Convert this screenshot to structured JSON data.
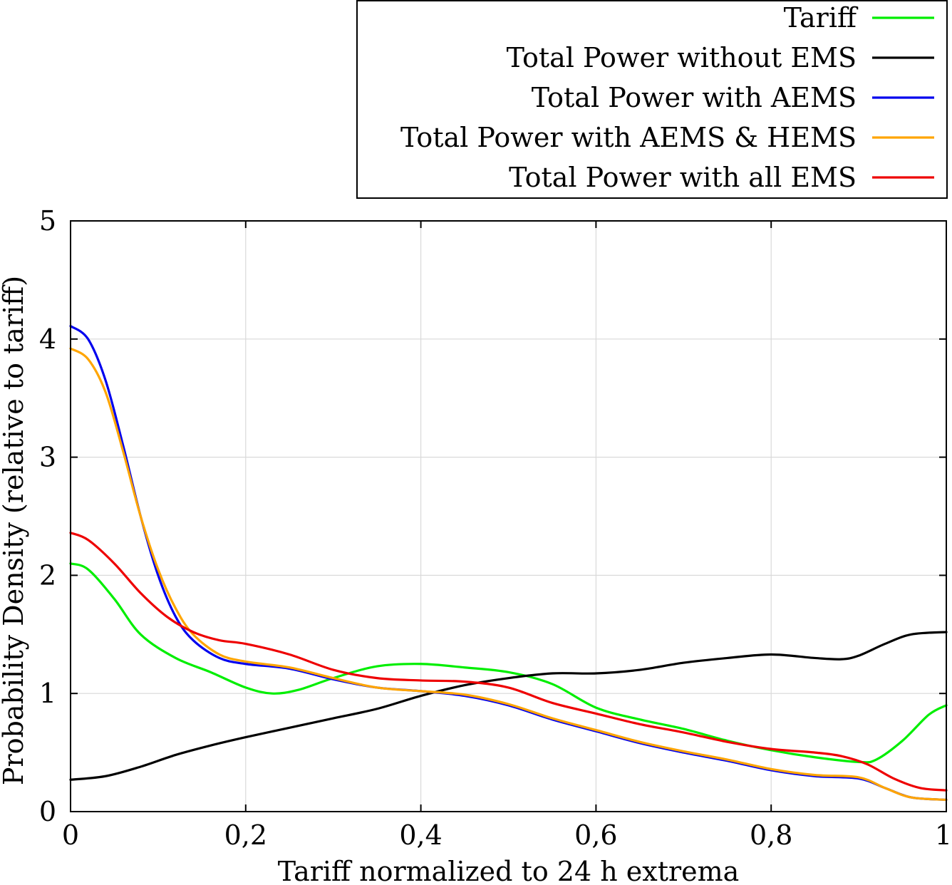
{
  "chart_data": {
    "type": "line",
    "xlabel": "Tariff normalized to 24 h extrema",
    "ylabel": "Probability Density (relative to tariff)",
    "xlim": [
      0,
      1
    ],
    "ylim": [
      0,
      5
    ],
    "grid": true,
    "legend_position": "top-right, above plot",
    "x_ticks": [
      {
        "value": 0,
        "label": "0"
      },
      {
        "value": 0.2,
        "label": "0,2"
      },
      {
        "value": 0.4,
        "label": "0,4"
      },
      {
        "value": 0.6,
        "label": "0,6"
      },
      {
        "value": 0.8,
        "label": "0,8"
      },
      {
        "value": 1,
        "label": "1"
      }
    ],
    "y_ticks": [
      {
        "value": 0,
        "label": "0"
      },
      {
        "value": 1,
        "label": "1"
      },
      {
        "value": 2,
        "label": "2"
      },
      {
        "value": 3,
        "label": "3"
      },
      {
        "value": 4,
        "label": "4"
      },
      {
        "value": 5,
        "label": "5"
      }
    ],
    "series": [
      {
        "name": "Tariff",
        "color": "#00ee00",
        "points": [
          [
            0,
            2.1
          ],
          [
            0.02,
            2.05
          ],
          [
            0.05,
            1.8
          ],
          [
            0.08,
            1.5
          ],
          [
            0.12,
            1.3
          ],
          [
            0.16,
            1.18
          ],
          [
            0.2,
            1.05
          ],
          [
            0.23,
            1.0
          ],
          [
            0.26,
            1.03
          ],
          [
            0.3,
            1.13
          ],
          [
            0.35,
            1.23
          ],
          [
            0.4,
            1.25
          ],
          [
            0.45,
            1.22
          ],
          [
            0.5,
            1.18
          ],
          [
            0.55,
            1.08
          ],
          [
            0.6,
            0.88
          ],
          [
            0.65,
            0.78
          ],
          [
            0.7,
            0.7
          ],
          [
            0.75,
            0.6
          ],
          [
            0.8,
            0.52
          ],
          [
            0.85,
            0.46
          ],
          [
            0.9,
            0.42
          ],
          [
            0.92,
            0.44
          ],
          [
            0.95,
            0.6
          ],
          [
            0.98,
            0.82
          ],
          [
            1,
            0.9
          ]
        ]
      },
      {
        "name": "Total Power without EMS",
        "color": "#000000",
        "points": [
          [
            0,
            0.27
          ],
          [
            0.04,
            0.3
          ],
          [
            0.08,
            0.38
          ],
          [
            0.12,
            0.48
          ],
          [
            0.16,
            0.56
          ],
          [
            0.2,
            0.63
          ],
          [
            0.25,
            0.71
          ],
          [
            0.3,
            0.79
          ],
          [
            0.35,
            0.87
          ],
          [
            0.4,
            0.98
          ],
          [
            0.45,
            1.07
          ],
          [
            0.5,
            1.13
          ],
          [
            0.55,
            1.17
          ],
          [
            0.6,
            1.17
          ],
          [
            0.65,
            1.2
          ],
          [
            0.7,
            1.26
          ],
          [
            0.75,
            1.3
          ],
          [
            0.8,
            1.33
          ],
          [
            0.85,
            1.3
          ],
          [
            0.88,
            1.29
          ],
          [
            0.9,
            1.32
          ],
          [
            0.93,
            1.42
          ],
          [
            0.96,
            1.5
          ],
          [
            1,
            1.52
          ]
        ]
      },
      {
        "name": "Total Power with AEMS",
        "color": "#0000ee",
        "points": [
          [
            0,
            4.11
          ],
          [
            0.02,
            4.0
          ],
          [
            0.04,
            3.65
          ],
          [
            0.06,
            3.1
          ],
          [
            0.08,
            2.5
          ],
          [
            0.1,
            2.0
          ],
          [
            0.12,
            1.65
          ],
          [
            0.14,
            1.45
          ],
          [
            0.17,
            1.3
          ],
          [
            0.2,
            1.25
          ],
          [
            0.25,
            1.21
          ],
          [
            0.3,
            1.12
          ],
          [
            0.35,
            1.05
          ],
          [
            0.4,
            1.02
          ],
          [
            0.45,
            0.98
          ],
          [
            0.5,
            0.9
          ],
          [
            0.55,
            0.78
          ],
          [
            0.6,
            0.68
          ],
          [
            0.65,
            0.58
          ],
          [
            0.7,
            0.5
          ],
          [
            0.75,
            0.43
          ],
          [
            0.8,
            0.35
          ],
          [
            0.85,
            0.3
          ],
          [
            0.9,
            0.28
          ],
          [
            0.93,
            0.2
          ],
          [
            0.96,
            0.12
          ],
          [
            1,
            0.1
          ]
        ]
      },
      {
        "name": "Total Power with AEMS & HEMS",
        "color": "#ffa500",
        "points": [
          [
            0,
            3.92
          ],
          [
            0.02,
            3.83
          ],
          [
            0.04,
            3.55
          ],
          [
            0.06,
            3.05
          ],
          [
            0.08,
            2.5
          ],
          [
            0.1,
            2.05
          ],
          [
            0.12,
            1.72
          ],
          [
            0.14,
            1.5
          ],
          [
            0.17,
            1.33
          ],
          [
            0.2,
            1.27
          ],
          [
            0.25,
            1.22
          ],
          [
            0.3,
            1.13
          ],
          [
            0.35,
            1.05
          ],
          [
            0.4,
            1.02
          ],
          [
            0.45,
            0.99
          ],
          [
            0.5,
            0.91
          ],
          [
            0.55,
            0.79
          ],
          [
            0.6,
            0.69
          ],
          [
            0.65,
            0.59
          ],
          [
            0.7,
            0.51
          ],
          [
            0.75,
            0.44
          ],
          [
            0.8,
            0.36
          ],
          [
            0.85,
            0.31
          ],
          [
            0.9,
            0.29
          ],
          [
            0.93,
            0.2
          ],
          [
            0.96,
            0.12
          ],
          [
            1,
            0.1
          ]
        ]
      },
      {
        "name": "Total Power with all EMS",
        "color": "#ee0000",
        "points": [
          [
            0,
            2.36
          ],
          [
            0.02,
            2.3
          ],
          [
            0.05,
            2.1
          ],
          [
            0.08,
            1.85
          ],
          [
            0.11,
            1.65
          ],
          [
            0.14,
            1.52
          ],
          [
            0.17,
            1.45
          ],
          [
            0.2,
            1.42
          ],
          [
            0.25,
            1.33
          ],
          [
            0.3,
            1.2
          ],
          [
            0.35,
            1.13
          ],
          [
            0.4,
            1.11
          ],
          [
            0.45,
            1.1
          ],
          [
            0.5,
            1.05
          ],
          [
            0.55,
            0.92
          ],
          [
            0.6,
            0.83
          ],
          [
            0.65,
            0.74
          ],
          [
            0.7,
            0.67
          ],
          [
            0.75,
            0.59
          ],
          [
            0.8,
            0.53
          ],
          [
            0.85,
            0.5
          ],
          [
            0.88,
            0.47
          ],
          [
            0.91,
            0.4
          ],
          [
            0.94,
            0.28
          ],
          [
            0.97,
            0.2
          ],
          [
            1,
            0.18
          ]
        ]
      }
    ]
  }
}
